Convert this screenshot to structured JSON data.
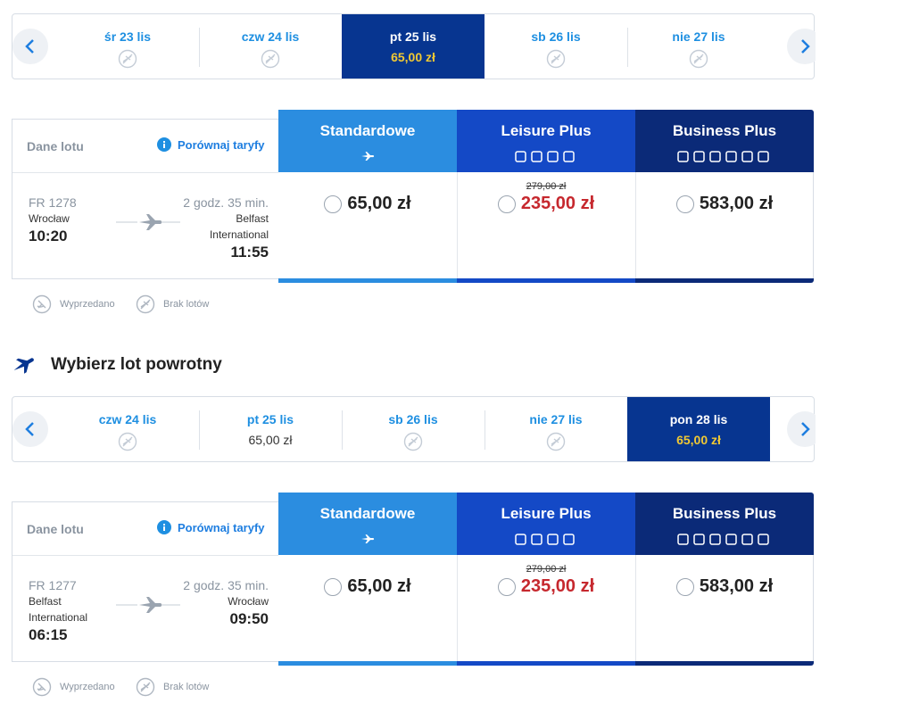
{
  "outbound": {
    "dates": [
      {
        "label": "śr 23 lis"
      },
      {
        "label": "czw 24 lis"
      },
      {
        "label": "pt 25 lis",
        "price": "65,00 zł",
        "selected": true
      },
      {
        "label": "sb 26 lis"
      },
      {
        "label": "nie 27 lis"
      }
    ],
    "details": {
      "header": "Dane lotu",
      "compare": "Porównaj taryfy",
      "flight": "FR 1278",
      "duration": "2 godz. 35 min.",
      "from": "Wrocław",
      "departure": "10:20",
      "to": "Belfast International",
      "arrival": "11:55"
    },
    "fares": [
      {
        "name": "Standardowe",
        "price": "65,00 zł"
      },
      {
        "name": "Leisure Plus",
        "old_price": "279,00 zł",
        "price": "235,00 zł"
      },
      {
        "name": "Business Plus",
        "price": "583,00 zł"
      }
    ],
    "legend": [
      "Wyprzedano",
      "Brak lotów"
    ]
  },
  "return_title": "Wybierz lot powrotny",
  "return": {
    "dates": [
      {
        "label": "czw 24 lis"
      },
      {
        "label": "pt 25 lis",
        "price": "65,00 zł"
      },
      {
        "label": "sb 26 lis"
      },
      {
        "label": "nie 27 lis"
      },
      {
        "label": "pon 28 lis",
        "price": "65,00 zł",
        "selected": true
      }
    ],
    "details": {
      "header": "Dane lotu",
      "compare": "Porównaj taryfy",
      "flight": "FR 1277",
      "duration": "2 godz. 35 min.",
      "from": "Belfast International",
      "departure": "06:15",
      "to": "Wrocław",
      "arrival": "09:50"
    },
    "fares": [
      {
        "name": "Standardowe",
        "price": "65,00 zł"
      },
      {
        "name": "Leisure Plus",
        "old_price": "279,00 zł",
        "price": "235,00 zł"
      },
      {
        "name": "Business Plus",
        "price": "583,00 zł"
      }
    ],
    "legend": [
      "Wyprzedano",
      "Brak lotów"
    ]
  }
}
